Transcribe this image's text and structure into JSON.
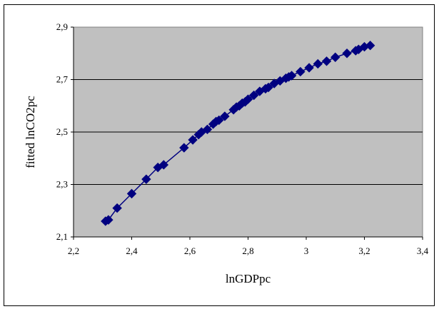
{
  "chart_data": {
    "type": "line",
    "title": "",
    "xlabel": "lnGDPpc",
    "ylabel": "fitted lnCO2pc",
    "xlim": [
      2.2,
      3.4
    ],
    "ylim": [
      2.1,
      2.9
    ],
    "xticks": [
      "2,2",
      "2,4",
      "2,6",
      "2,8",
      "3",
      "3,2",
      "3,4"
    ],
    "yticks": [
      "2,1",
      "2,3",
      "2,5",
      "2,7",
      "2,9"
    ],
    "grid": "horizontal",
    "legend": "none",
    "marker": "diamond",
    "plot_background": "#c0c0c0",
    "series": [
      {
        "color": "#000080",
        "x": [
          2.31,
          2.32,
          2.35,
          2.4,
          2.45,
          2.49,
          2.51,
          2.58,
          2.61,
          2.63,
          2.64,
          2.66,
          2.68,
          2.69,
          2.7,
          2.72,
          2.75,
          2.76,
          2.77,
          2.78,
          2.79,
          2.8,
          2.82,
          2.84,
          2.86,
          2.87,
          2.89,
          2.91,
          2.93,
          2.94,
          2.95,
          2.98,
          3.01,
          3.04,
          3.07,
          3.1,
          3.14,
          3.17,
          3.18,
          3.2,
          3.22
        ],
        "y": [
          2.16,
          2.165,
          2.21,
          2.265,
          2.32,
          2.365,
          2.375,
          2.44,
          2.47,
          2.49,
          2.5,
          2.51,
          2.53,
          2.54,
          2.545,
          2.56,
          2.585,
          2.595,
          2.6,
          2.61,
          2.615,
          2.625,
          2.64,
          2.655,
          2.665,
          2.67,
          2.685,
          2.695,
          2.705,
          2.71,
          2.715,
          2.73,
          2.745,
          2.76,
          2.77,
          2.785,
          2.8,
          2.81,
          2.815,
          2.825,
          2.83
        ]
      }
    ]
  }
}
